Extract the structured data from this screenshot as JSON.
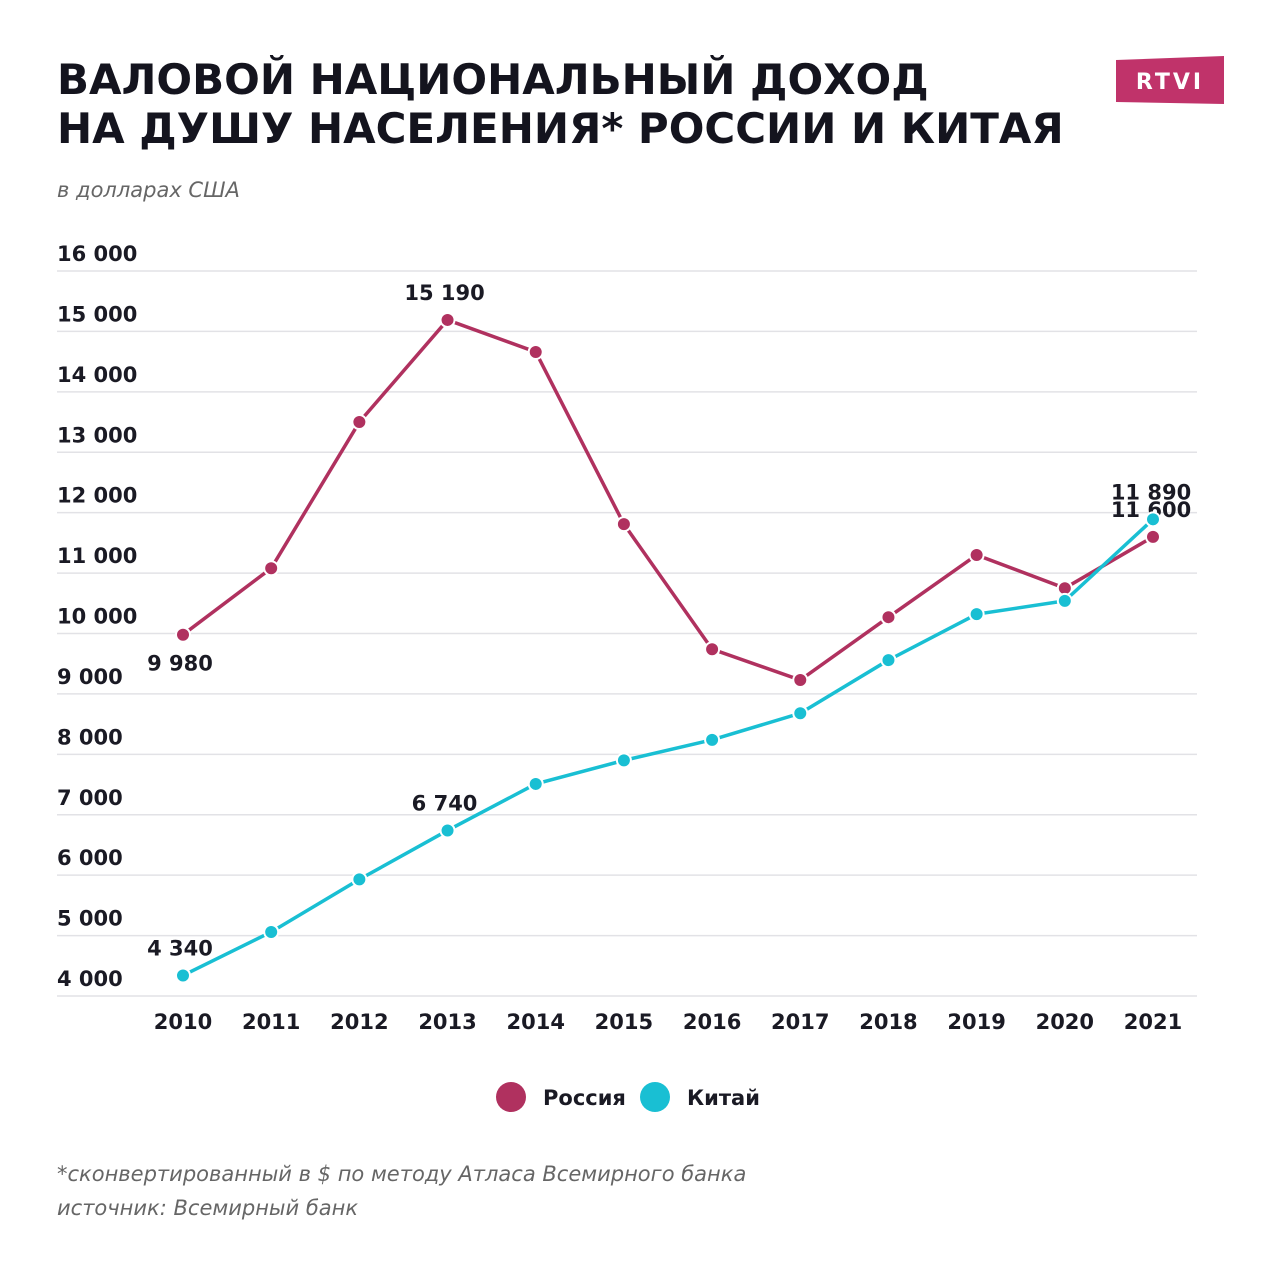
{
  "chart_data": {
    "type": "line",
    "title": [
      "ВАЛОВОЙ НАЦИОНАЛЬНЫЙ ДОХОД",
      "НА ДУШУ НАСЕЛЕНИЯ* РОССИИ И КИТАЯ"
    ],
    "subtitle": "в долларах США",
    "logo": "RTVI",
    "categories": [
      "2010",
      "2011",
      "2012",
      "2013",
      "2014",
      "2015",
      "2016",
      "2017",
      "2018",
      "2019",
      "2020",
      "2021"
    ],
    "series": [
      {
        "name": "Россия",
        "color": "#b0315f",
        "values": [
          9980,
          11080,
          13500,
          15190,
          14660,
          11810,
          9740,
          9230,
          10270,
          11300,
          10750,
          11600
        ],
        "value_labels": [
          "9 980",
          null,
          null,
          "15 190",
          null,
          null,
          null,
          null,
          null,
          null,
          null,
          "11 600"
        ]
      },
      {
        "name": "Китай",
        "color": "#19bfd3",
        "values": [
          4340,
          5060,
          5930,
          6740,
          7510,
          7900,
          8240,
          8680,
          9560,
          10320,
          10540,
          11890
        ],
        "value_labels": [
          "4 340",
          null,
          null,
          "6 740",
          null,
          null,
          null,
          null,
          null,
          null,
          null,
          "11 890"
        ]
      }
    ],
    "ylim": [
      4000,
      16000
    ],
    "yticks": [
      {
        "value": 4000,
        "label": "4 000"
      },
      {
        "value": 5000,
        "label": "5 000"
      },
      {
        "value": 6000,
        "label": "6 000"
      },
      {
        "value": 7000,
        "label": "7 000"
      },
      {
        "value": 8000,
        "label": "8 000"
      },
      {
        "value": 9000,
        "label": "9 000"
      },
      {
        "value": 10000,
        "label": "10 000"
      },
      {
        "value": 11000,
        "label": "11 000"
      },
      {
        "value": 12000,
        "label": "12 000"
      },
      {
        "value": 13000,
        "label": "13 000"
      },
      {
        "value": 14000,
        "label": "14 000"
      },
      {
        "value": 15000,
        "label": "15 000"
      },
      {
        "value": 16000,
        "label": "16 000"
      }
    ],
    "grid": true,
    "legend": "bottom",
    "footnote": "*сконвертированный в $ по методу Атласа Всемирного банка",
    "source": "источник: Всемирный банк"
  }
}
